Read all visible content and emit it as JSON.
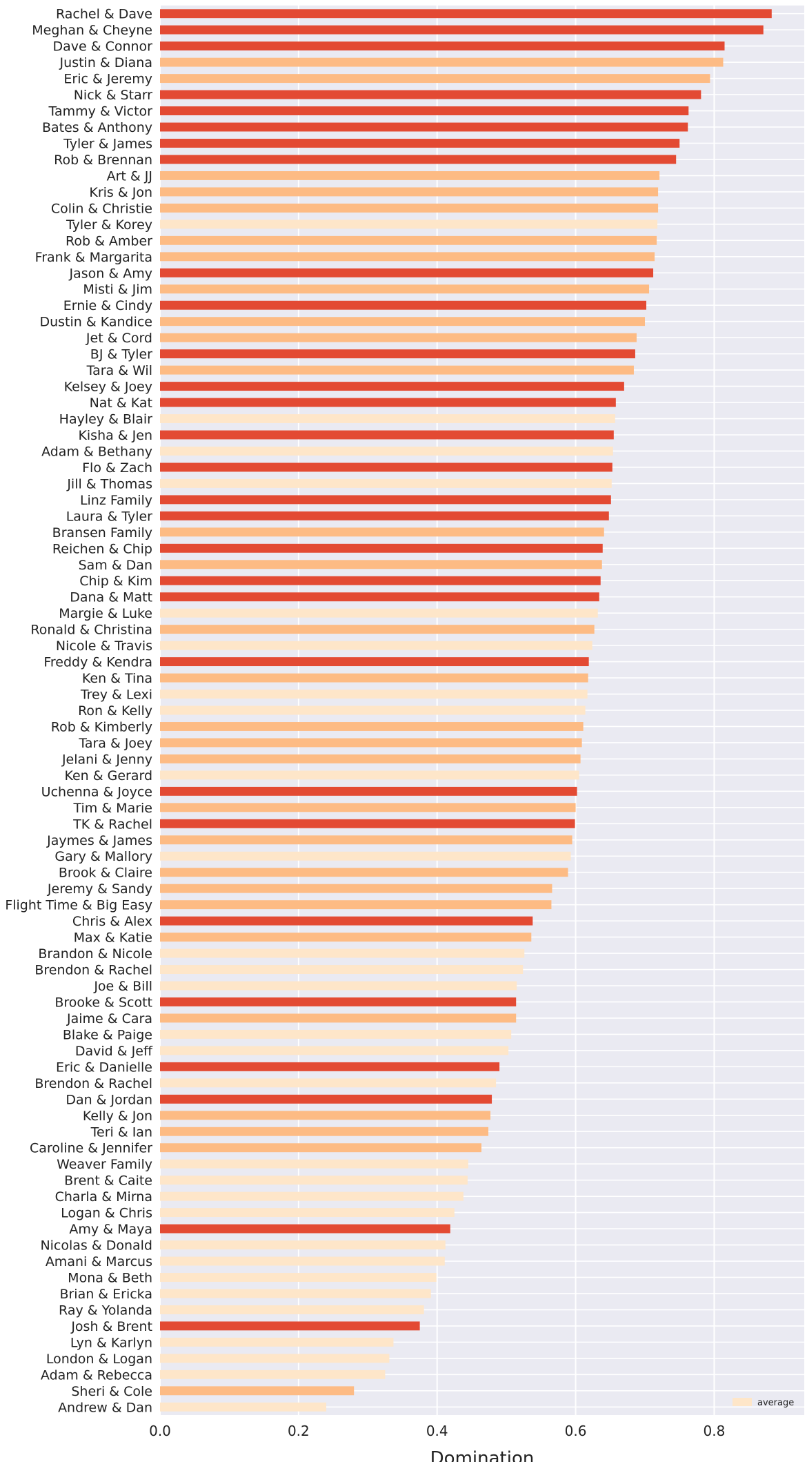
{
  "chart_data": {
    "type": "bar",
    "orientation": "horizontal",
    "title": "",
    "xlabel": "Domination",
    "ylabel": "",
    "xlim": [
      0,
      0.93
    ],
    "xticks": [
      0.0,
      0.2,
      0.4,
      0.6,
      0.8
    ],
    "xtick_labels": [
      "0.0",
      "0.2",
      "0.4",
      "0.6",
      "0.8"
    ],
    "grid": true,
    "legend": {
      "placement": "bottom-right",
      "entries": [
        {
          "label": "average",
          "color": "#fee6c9"
        }
      ]
    },
    "colors": {
      "high": "#e34a33",
      "mid": "#fdbb84",
      "low": "#fee6c9",
      "background": "#eaeaf2",
      "grid": "#ffffff"
    },
    "categories": [
      "Rachel & Dave",
      "Meghan & Cheyne",
      "Dave & Connor",
      "Justin & Diana",
      "Eric & Jeremy",
      "Nick & Starr",
      "Tammy & Victor",
      "Bates & Anthony",
      "Tyler & James",
      "Rob & Brennan",
      "Art & JJ",
      "Kris & Jon",
      "Colin & Christie",
      "Tyler & Korey",
      "Rob & Amber",
      "Frank & Margarita",
      "Jason & Amy",
      "Misti & Jim",
      "Ernie & Cindy",
      "Dustin & Kandice",
      "Jet & Cord",
      "BJ & Tyler",
      "Tara & Wil",
      "Kelsey & Joey",
      "Nat & Kat",
      "Hayley & Blair",
      "Kisha & Jen",
      "Adam & Bethany",
      "Flo & Zach",
      "Jill & Thomas",
      "Linz Family",
      "Laura & Tyler",
      "Bransen Family",
      "Reichen & Chip",
      "Sam & Dan",
      "Chip & Kim",
      "Dana & Matt",
      "Margie & Luke",
      "Ronald & Christina",
      "Nicole & Travis",
      "Freddy & Kendra",
      "Ken & Tina",
      "Trey & Lexi",
      "Ron & Kelly",
      "Rob & Kimberly",
      "Tara & Joey",
      "Jelani & Jenny",
      "Ken & Gerard",
      "Uchenna & Joyce",
      "Tim & Marie",
      "TK & Rachel",
      "Jaymes & James",
      "Gary & Mallory",
      "Brook & Claire",
      "Jeremy & Sandy",
      "Flight Time & Big Easy",
      "Chris & Alex",
      "Max & Katie",
      "Brandon & Nicole",
      "Brendon & Rachel",
      "Joe & Bill",
      "Brooke & Scott",
      "Jaime & Cara",
      "Blake & Paige",
      "David & Jeff",
      "Eric & Danielle",
      "Brendon & Rachel",
      "Dan & Jordan",
      "Kelly & Jon",
      "Teri & Ian",
      "Caroline & Jennifer",
      "Weaver Family",
      "Brent & Caite",
      "Charla & Mirna",
      "Logan & Chris",
      "Amy & Maya",
      "Nicolas & Donald",
      "Amani & Marcus",
      "Mona & Beth",
      "Brian & Ericka",
      "Ray & Yolanda",
      "Josh & Brent",
      "Lyn & Karlyn",
      "London & Logan",
      "Adam & Rebecca",
      "Sheri & Cole",
      "Andrew & Dan"
    ],
    "values": [
      0.883,
      0.871,
      0.815,
      0.813,
      0.794,
      0.781,
      0.763,
      0.762,
      0.75,
      0.745,
      0.721,
      0.719,
      0.719,
      0.718,
      0.717,
      0.714,
      0.712,
      0.706,
      0.702,
      0.7,
      0.688,
      0.686,
      0.684,
      0.67,
      0.658,
      0.657,
      0.655,
      0.654,
      0.653,
      0.652,
      0.651,
      0.648,
      0.641,
      0.639,
      0.638,
      0.636,
      0.634,
      0.632,
      0.627,
      0.624,
      0.619,
      0.618,
      0.617,
      0.614,
      0.611,
      0.609,
      0.607,
      0.605,
      0.602,
      0.6,
      0.599,
      0.595,
      0.593,
      0.589,
      0.566,
      0.565,
      0.538,
      0.536,
      0.526,
      0.524,
      0.515,
      0.514,
      0.514,
      0.507,
      0.503,
      0.49,
      0.485,
      0.479,
      0.477,
      0.474,
      0.464,
      0.445,
      0.444,
      0.438,
      0.425,
      0.419,
      0.412,
      0.411,
      0.399,
      0.391,
      0.381,
      0.375,
      0.337,
      0.331,
      0.325,
      0.28,
      0.24
    ],
    "color_groups": [
      "high",
      "high",
      "high",
      "mid",
      "mid",
      "high",
      "high",
      "high",
      "high",
      "high",
      "mid",
      "mid",
      "mid",
      "low",
      "mid",
      "mid",
      "high",
      "mid",
      "high",
      "mid",
      "mid",
      "high",
      "mid",
      "high",
      "high",
      "low",
      "high",
      "low",
      "high",
      "low",
      "high",
      "high",
      "mid",
      "high",
      "mid",
      "high",
      "high",
      "low",
      "mid",
      "low",
      "high",
      "mid",
      "low",
      "low",
      "mid",
      "mid",
      "mid",
      "low",
      "high",
      "mid",
      "high",
      "mid",
      "low",
      "mid",
      "mid",
      "mid",
      "high",
      "mid",
      "low",
      "low",
      "low",
      "high",
      "mid",
      "low",
      "low",
      "high",
      "low",
      "high",
      "mid",
      "mid",
      "mid",
      "low",
      "low",
      "low",
      "low",
      "high",
      "low",
      "low",
      "low",
      "low",
      "low",
      "high",
      "low",
      "low",
      "low",
      "mid",
      "low"
    ]
  }
}
